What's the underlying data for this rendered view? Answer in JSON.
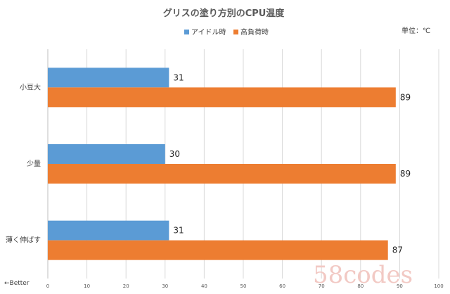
{
  "chart_data": {
    "type": "bar",
    "orientation": "horizontal",
    "title": "グリスの塗り方別のCPU温度",
    "unit_label": "単位：℃",
    "categories": [
      "小豆大",
      "少量",
      "薄く伸ばす"
    ],
    "series": [
      {
        "name": "アイドル時",
        "color": "#5b9bd5",
        "values": [
          31,
          30,
          31
        ]
      },
      {
        "name": "高負荷時",
        "color": "#ed7d31",
        "values": [
          89,
          89,
          87
        ]
      }
    ],
    "xlim": [
      0,
      100
    ],
    "x_ticks": [
      0,
      10,
      20,
      30,
      40,
      50,
      60,
      70,
      80,
      90,
      100
    ],
    "grid": true,
    "legend_position": "top",
    "direction_note": "←Better"
  },
  "watermark": "58codes"
}
